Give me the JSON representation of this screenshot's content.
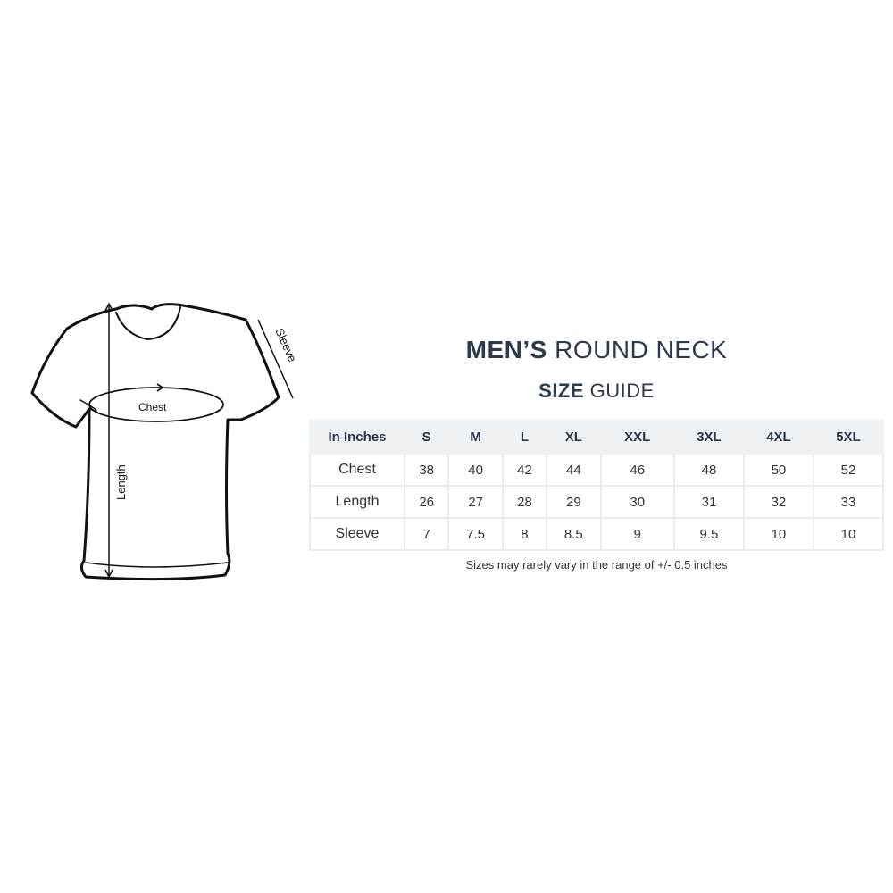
{
  "diagram": {
    "chest_label": "Chest",
    "length_label": "Length",
    "sleeve_label": "Sleeve"
  },
  "title": {
    "bold": "MEN’S",
    "rest": "ROUND NECK"
  },
  "subtitle": {
    "bold": "SIZE",
    "rest": "GUIDE"
  },
  "table": {
    "headers": [
      "In Inches",
      "S",
      "M",
      "L",
      "XL",
      "XXL",
      "3XL",
      "4XL",
      "5XL"
    ],
    "rows": [
      {
        "label": "Chest",
        "values": [
          "38",
          "40",
          "42",
          "44",
          "46",
          "48",
          "50",
          "52"
        ]
      },
      {
        "label": "Length",
        "values": [
          "26",
          "27",
          "28",
          "29",
          "30",
          "31",
          "32",
          "33"
        ]
      },
      {
        "label": "Sleeve",
        "values": [
          "7",
          "7.5",
          "8",
          "8.5",
          "9",
          "9.5",
          "10",
          "10"
        ]
      }
    ]
  },
  "note": "Sizes may rarely vary in the range of +/- 0.5 inches",
  "colors": {
    "title": "#2b3a4c",
    "header_bg": "#eef2f5"
  }
}
